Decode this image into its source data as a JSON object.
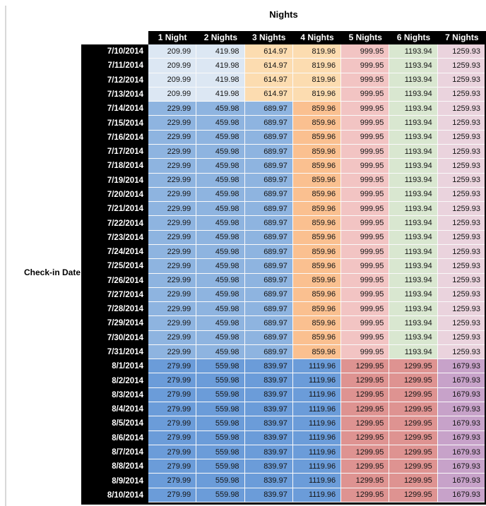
{
  "chart_data": {
    "type": "table",
    "title": "Nights",
    "row_header_label": "Check-in Date",
    "columns": [
      "1 Night",
      "2 Nights",
      "3 Nights",
      "4 Nights",
      "5 Nights",
      "6 Nights",
      "7 Nights"
    ],
    "rows": [
      {
        "date": "7/10/2014",
        "tier": "low",
        "values": [
          209.99,
          419.98,
          614.97,
          819.96,
          999.95,
          1193.94,
          1259.93
        ]
      },
      {
        "date": "7/11/2014",
        "tier": "low",
        "values": [
          209.99,
          419.98,
          614.97,
          819.96,
          999.95,
          1193.94,
          1259.93
        ]
      },
      {
        "date": "7/12/2014",
        "tier": "low",
        "values": [
          209.99,
          419.98,
          614.97,
          819.96,
          999.95,
          1193.94,
          1259.93
        ]
      },
      {
        "date": "7/13/2014",
        "tier": "low",
        "values": [
          209.99,
          419.98,
          614.97,
          819.96,
          999.95,
          1193.94,
          1259.93
        ]
      },
      {
        "date": "7/14/2014",
        "tier": "mid",
        "values": [
          229.99,
          459.98,
          689.97,
          859.96,
          999.95,
          1193.94,
          1259.93
        ]
      },
      {
        "date": "7/15/2014",
        "tier": "mid",
        "values": [
          229.99,
          459.98,
          689.97,
          859.96,
          999.95,
          1193.94,
          1259.93
        ]
      },
      {
        "date": "7/16/2014",
        "tier": "mid",
        "values": [
          229.99,
          459.98,
          689.97,
          859.96,
          999.95,
          1193.94,
          1259.93
        ]
      },
      {
        "date": "7/17/2014",
        "tier": "mid",
        "values": [
          229.99,
          459.98,
          689.97,
          859.96,
          999.95,
          1193.94,
          1259.93
        ]
      },
      {
        "date": "7/18/2014",
        "tier": "mid",
        "values": [
          229.99,
          459.98,
          689.97,
          859.96,
          999.95,
          1193.94,
          1259.93
        ]
      },
      {
        "date": "7/19/2014",
        "tier": "mid",
        "values": [
          229.99,
          459.98,
          689.97,
          859.96,
          999.95,
          1193.94,
          1259.93
        ]
      },
      {
        "date": "7/20/2014",
        "tier": "mid",
        "values": [
          229.99,
          459.98,
          689.97,
          859.96,
          999.95,
          1193.94,
          1259.93
        ]
      },
      {
        "date": "7/21/2014",
        "tier": "mid",
        "values": [
          229.99,
          459.98,
          689.97,
          859.96,
          999.95,
          1193.94,
          1259.93
        ]
      },
      {
        "date": "7/22/2014",
        "tier": "mid",
        "values": [
          229.99,
          459.98,
          689.97,
          859.96,
          999.95,
          1193.94,
          1259.93
        ]
      },
      {
        "date": "7/23/2014",
        "tier": "mid",
        "values": [
          229.99,
          459.98,
          689.97,
          859.96,
          999.95,
          1193.94,
          1259.93
        ]
      },
      {
        "date": "7/24/2014",
        "tier": "mid",
        "values": [
          229.99,
          459.98,
          689.97,
          859.96,
          999.95,
          1193.94,
          1259.93
        ]
      },
      {
        "date": "7/25/2014",
        "tier": "mid",
        "values": [
          229.99,
          459.98,
          689.97,
          859.96,
          999.95,
          1193.94,
          1259.93
        ]
      },
      {
        "date": "7/26/2014",
        "tier": "mid",
        "values": [
          229.99,
          459.98,
          689.97,
          859.96,
          999.95,
          1193.94,
          1259.93
        ]
      },
      {
        "date": "7/27/2014",
        "tier": "mid",
        "values": [
          229.99,
          459.98,
          689.97,
          859.96,
          999.95,
          1193.94,
          1259.93
        ]
      },
      {
        "date": "7/28/2014",
        "tier": "mid",
        "values": [
          229.99,
          459.98,
          689.97,
          859.96,
          999.95,
          1193.94,
          1259.93
        ]
      },
      {
        "date": "7/29/2014",
        "tier": "mid",
        "values": [
          229.99,
          459.98,
          689.97,
          859.96,
          999.95,
          1193.94,
          1259.93
        ]
      },
      {
        "date": "7/30/2014",
        "tier": "mid",
        "values": [
          229.99,
          459.98,
          689.97,
          859.96,
          999.95,
          1193.94,
          1259.93
        ]
      },
      {
        "date": "7/31/2014",
        "tier": "mid",
        "values": [
          229.99,
          459.98,
          689.97,
          859.96,
          999.95,
          1193.94,
          1259.93
        ]
      },
      {
        "date": "8/1/2014",
        "tier": "high",
        "values": [
          279.99,
          559.98,
          839.97,
          1119.96,
          1299.95,
          1299.95,
          1679.93
        ]
      },
      {
        "date": "8/2/2014",
        "tier": "high",
        "values": [
          279.99,
          559.98,
          839.97,
          1119.96,
          1299.95,
          1299.95,
          1679.93
        ]
      },
      {
        "date": "8/3/2014",
        "tier": "high",
        "values": [
          279.99,
          559.98,
          839.97,
          1119.96,
          1299.95,
          1299.95,
          1679.93
        ]
      },
      {
        "date": "8/4/2014",
        "tier": "high",
        "values": [
          279.99,
          559.98,
          839.97,
          1119.96,
          1299.95,
          1299.95,
          1679.93
        ]
      },
      {
        "date": "8/5/2014",
        "tier": "high",
        "values": [
          279.99,
          559.98,
          839.97,
          1119.96,
          1299.95,
          1299.95,
          1679.93
        ]
      },
      {
        "date": "8/6/2014",
        "tier": "high",
        "values": [
          279.99,
          559.98,
          839.97,
          1119.96,
          1299.95,
          1299.95,
          1679.93
        ]
      },
      {
        "date": "8/7/2014",
        "tier": "high",
        "values": [
          279.99,
          559.98,
          839.97,
          1119.96,
          1299.95,
          1299.95,
          1679.93
        ]
      },
      {
        "date": "8/8/2014",
        "tier": "high",
        "values": [
          279.99,
          559.98,
          839.97,
          1119.96,
          1299.95,
          1299.95,
          1679.93
        ]
      },
      {
        "date": "8/9/2014",
        "tier": "high",
        "values": [
          279.99,
          559.98,
          839.97,
          1119.96,
          1299.95,
          1299.95,
          1679.93
        ]
      },
      {
        "date": "8/10/2014",
        "tier": "high",
        "values": [
          279.99,
          559.98,
          839.97,
          1119.96,
          1299.95,
          1299.95,
          1679.93
        ]
      }
    ]
  },
  "style": {
    "header_bg": "#000000",
    "header_text": "#ffffff",
    "grid_line": "#fafafa",
    "value_text": "#141414",
    "tier_colors": {
      "low": [
        "#dce7f3",
        "#dce7f3",
        "#fcdcb0",
        "#fcdcb0",
        "#f2c4c3",
        "#d9e7d0",
        "#ead3dd"
      ],
      "mid": [
        "#8eb4e0",
        "#8eb4e0",
        "#8eb4e0",
        "#fac090",
        "#f2c4c3",
        "#d9e7d0",
        "#ead3dd"
      ],
      "high": [
        "#6b9cd9",
        "#6b9cd9",
        "#6b9cd9",
        "#6b9cd9",
        "#de9391",
        "#de9391",
        "#c7a2c9"
      ]
    }
  }
}
